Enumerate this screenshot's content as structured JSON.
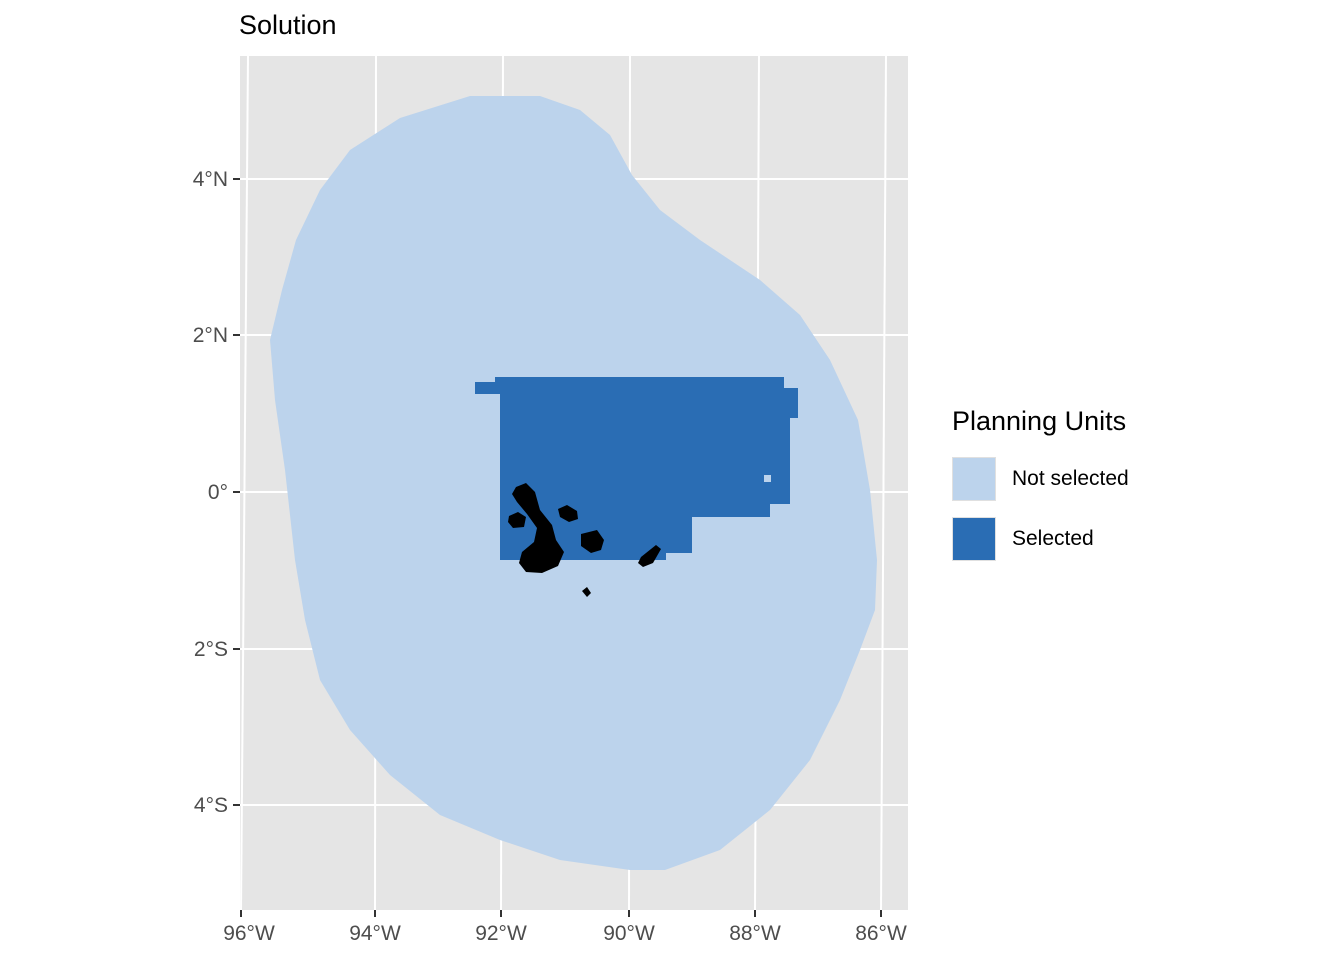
{
  "title": "Solution",
  "colors": {
    "panel_background": "#e5e5e5",
    "gridline": "#ffffff",
    "not_selected": "#bcd3ec",
    "selected": "#2a6db4",
    "land": "#000000"
  },
  "axes": {
    "y_ticks": [
      "4°N",
      "2°N",
      "0°",
      "2°S",
      "4°S"
    ],
    "x_ticks": [
      "96°W",
      "94°W",
      "92°W",
      "90°W",
      "88°W",
      "86°W"
    ]
  },
  "legend": {
    "title": "Planning Units",
    "items": [
      {
        "label": "Not selected",
        "color": "#bcd3ec"
      },
      {
        "label": "Selected",
        "color": "#2a6db4"
      }
    ]
  }
}
